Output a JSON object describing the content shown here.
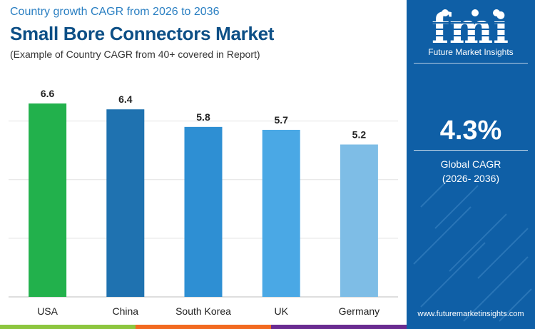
{
  "header": {
    "subtitle": "Country growth CAGR from 2026 to 2036",
    "title": "Small Bore Connectors Market",
    "note": "(Example of Country CAGR from 40+ covered in Report)"
  },
  "sidebar": {
    "logo_text": "fmi",
    "logo_subtitle": "Future Market Insights",
    "kpi_value": "4.3%",
    "kpi_label_line1": "Global CAGR",
    "kpi_label_line2": "(2026- 2036)",
    "website": "www.futuremarketinsights.com",
    "background": "#0f5fa6"
  },
  "bottom_bar_colors": [
    "#8dc63f",
    "#f26a21",
    "#6a2c91"
  ],
  "chart_data": {
    "type": "bar",
    "categories": [
      "USA",
      "China",
      "South Korea",
      "UK",
      "Germany"
    ],
    "values": [
      6.6,
      6.4,
      5.8,
      5.7,
      5.2
    ],
    "value_labels": [
      "6.6",
      "6.4",
      "5.8",
      "5.7",
      "5.2"
    ],
    "colors": [
      "#22b14c",
      "#1f72b0",
      "#2e8fd3",
      "#4aa8e5",
      "#7ebde6"
    ],
    "ylim": [
      0,
      6.6
    ],
    "grid": true,
    "grid_values": [
      2,
      4,
      6
    ],
    "title": "",
    "xlabel": "",
    "ylabel": ""
  }
}
